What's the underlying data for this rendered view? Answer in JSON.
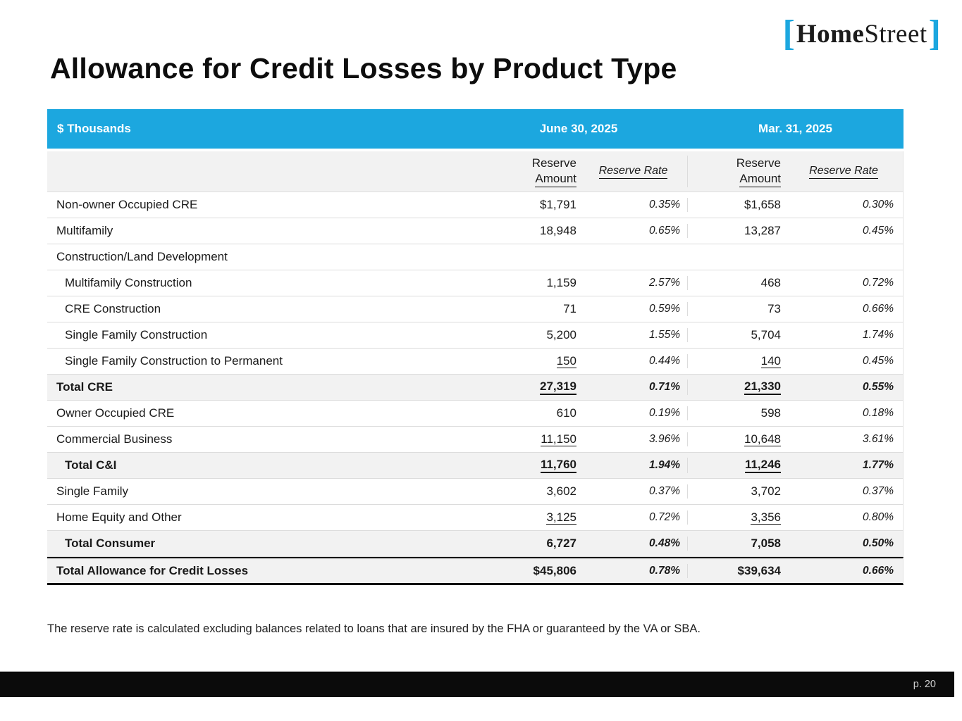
{
  "brand": {
    "bracket_left": "[",
    "name_bold": "Home",
    "name_regular": "Street",
    "bracket_right": "]",
    "accent_color": "#1CA7DF"
  },
  "title": "Allowance for Credit Losses by Product Type",
  "table": {
    "unit_label": "$ Thousands",
    "periods": [
      "June 30, 2025",
      "Mar. 31, 2025"
    ],
    "subheaders": {
      "amount_line1": "Reserve",
      "amount_line2": "Amount",
      "rate": "Reserve Rate"
    },
    "rows": [
      {
        "label": "Non-owner Occupied CRE",
        "a1": "$1,791",
        "r1": "0.35%",
        "a2": "$1,658",
        "r2": "0.30%"
      },
      {
        "label": "Multifamily",
        "a1": "18,948",
        "r1": "0.65%",
        "a2": "13,287",
        "r2": "0.45%"
      },
      {
        "label": "Construction/Land Development",
        "a1": "",
        "r1": "",
        "a2": "",
        "r2": ""
      },
      {
        "label": "Multifamily Construction",
        "indent": 1,
        "a1": "1,159",
        "r1": "2.57%",
        "a2": "468",
        "r2": "0.72%"
      },
      {
        "label": "CRE Construction",
        "indent": 1,
        "a1": "71",
        "r1": "0.59%",
        "a2": "73",
        "r2": "0.66%"
      },
      {
        "label": "Single Family Construction",
        "indent": 1,
        "a1": "5,200",
        "r1": "1.55%",
        "a2": "5,704",
        "r2": "1.74%"
      },
      {
        "label": "Single Family Construction to Permanent",
        "indent": 1,
        "a1": "150",
        "u1": true,
        "r1": "0.44%",
        "a2": "140",
        "u2": true,
        "r2": "0.45%"
      },
      {
        "label": "Total CRE",
        "emphasis": true,
        "shaded": true,
        "a1": "27,319",
        "u1": true,
        "r1": "0.71%",
        "a2": "21,330",
        "u2": true,
        "r2": "0.55%"
      },
      {
        "label": "Owner Occupied CRE",
        "a1": "610",
        "r1": "0.19%",
        "a2": "598",
        "r2": "0.18%"
      },
      {
        "label": "Commercial Business",
        "a1": "11,150",
        "u1": true,
        "r1": "3.96%",
        "a2": "10,648",
        "u2": true,
        "r2": "3.61%"
      },
      {
        "label": "Total C&I",
        "indent": 1,
        "emphasis": true,
        "shaded": true,
        "a1": "11,760",
        "u1": true,
        "r1": "1.94%",
        "a2": "11,246",
        "u2": true,
        "r2": "1.77%"
      },
      {
        "label": "Single Family",
        "a1": "3,602",
        "r1": "0.37%",
        "a2": "3,702",
        "r2": "0.37%"
      },
      {
        "label": "Home Equity and Other",
        "a1": "3,125",
        "u1": true,
        "r1": "0.72%",
        "a2": "3,356",
        "u2": true,
        "r2": "0.80%"
      },
      {
        "label": "Total Consumer",
        "indent": 1,
        "emphasis": true,
        "shaded": true,
        "a1": "6,727",
        "r1": "0.48%",
        "a2": "7,058",
        "r2": "0.50%"
      },
      {
        "label": "Total Allowance for Credit Losses",
        "emphasis": true,
        "grand": true,
        "a1": "$45,806",
        "r1": "0.78%",
        "a2": "$39,634",
        "r2": "0.66%"
      }
    ]
  },
  "footnote": "The reserve rate is calculated excluding balances related to loans that are insured by the FHA or guaranteed by the VA or SBA.",
  "footer": {
    "page_label": "p. 20"
  },
  "colors": {
    "header_bg": "#1CA7DF",
    "shaded_row_bg": "#F2F2F2",
    "border_light": "#DCDCDC",
    "footer_bg": "#0B0B0B",
    "footer_text": "#CFCFCF"
  }
}
